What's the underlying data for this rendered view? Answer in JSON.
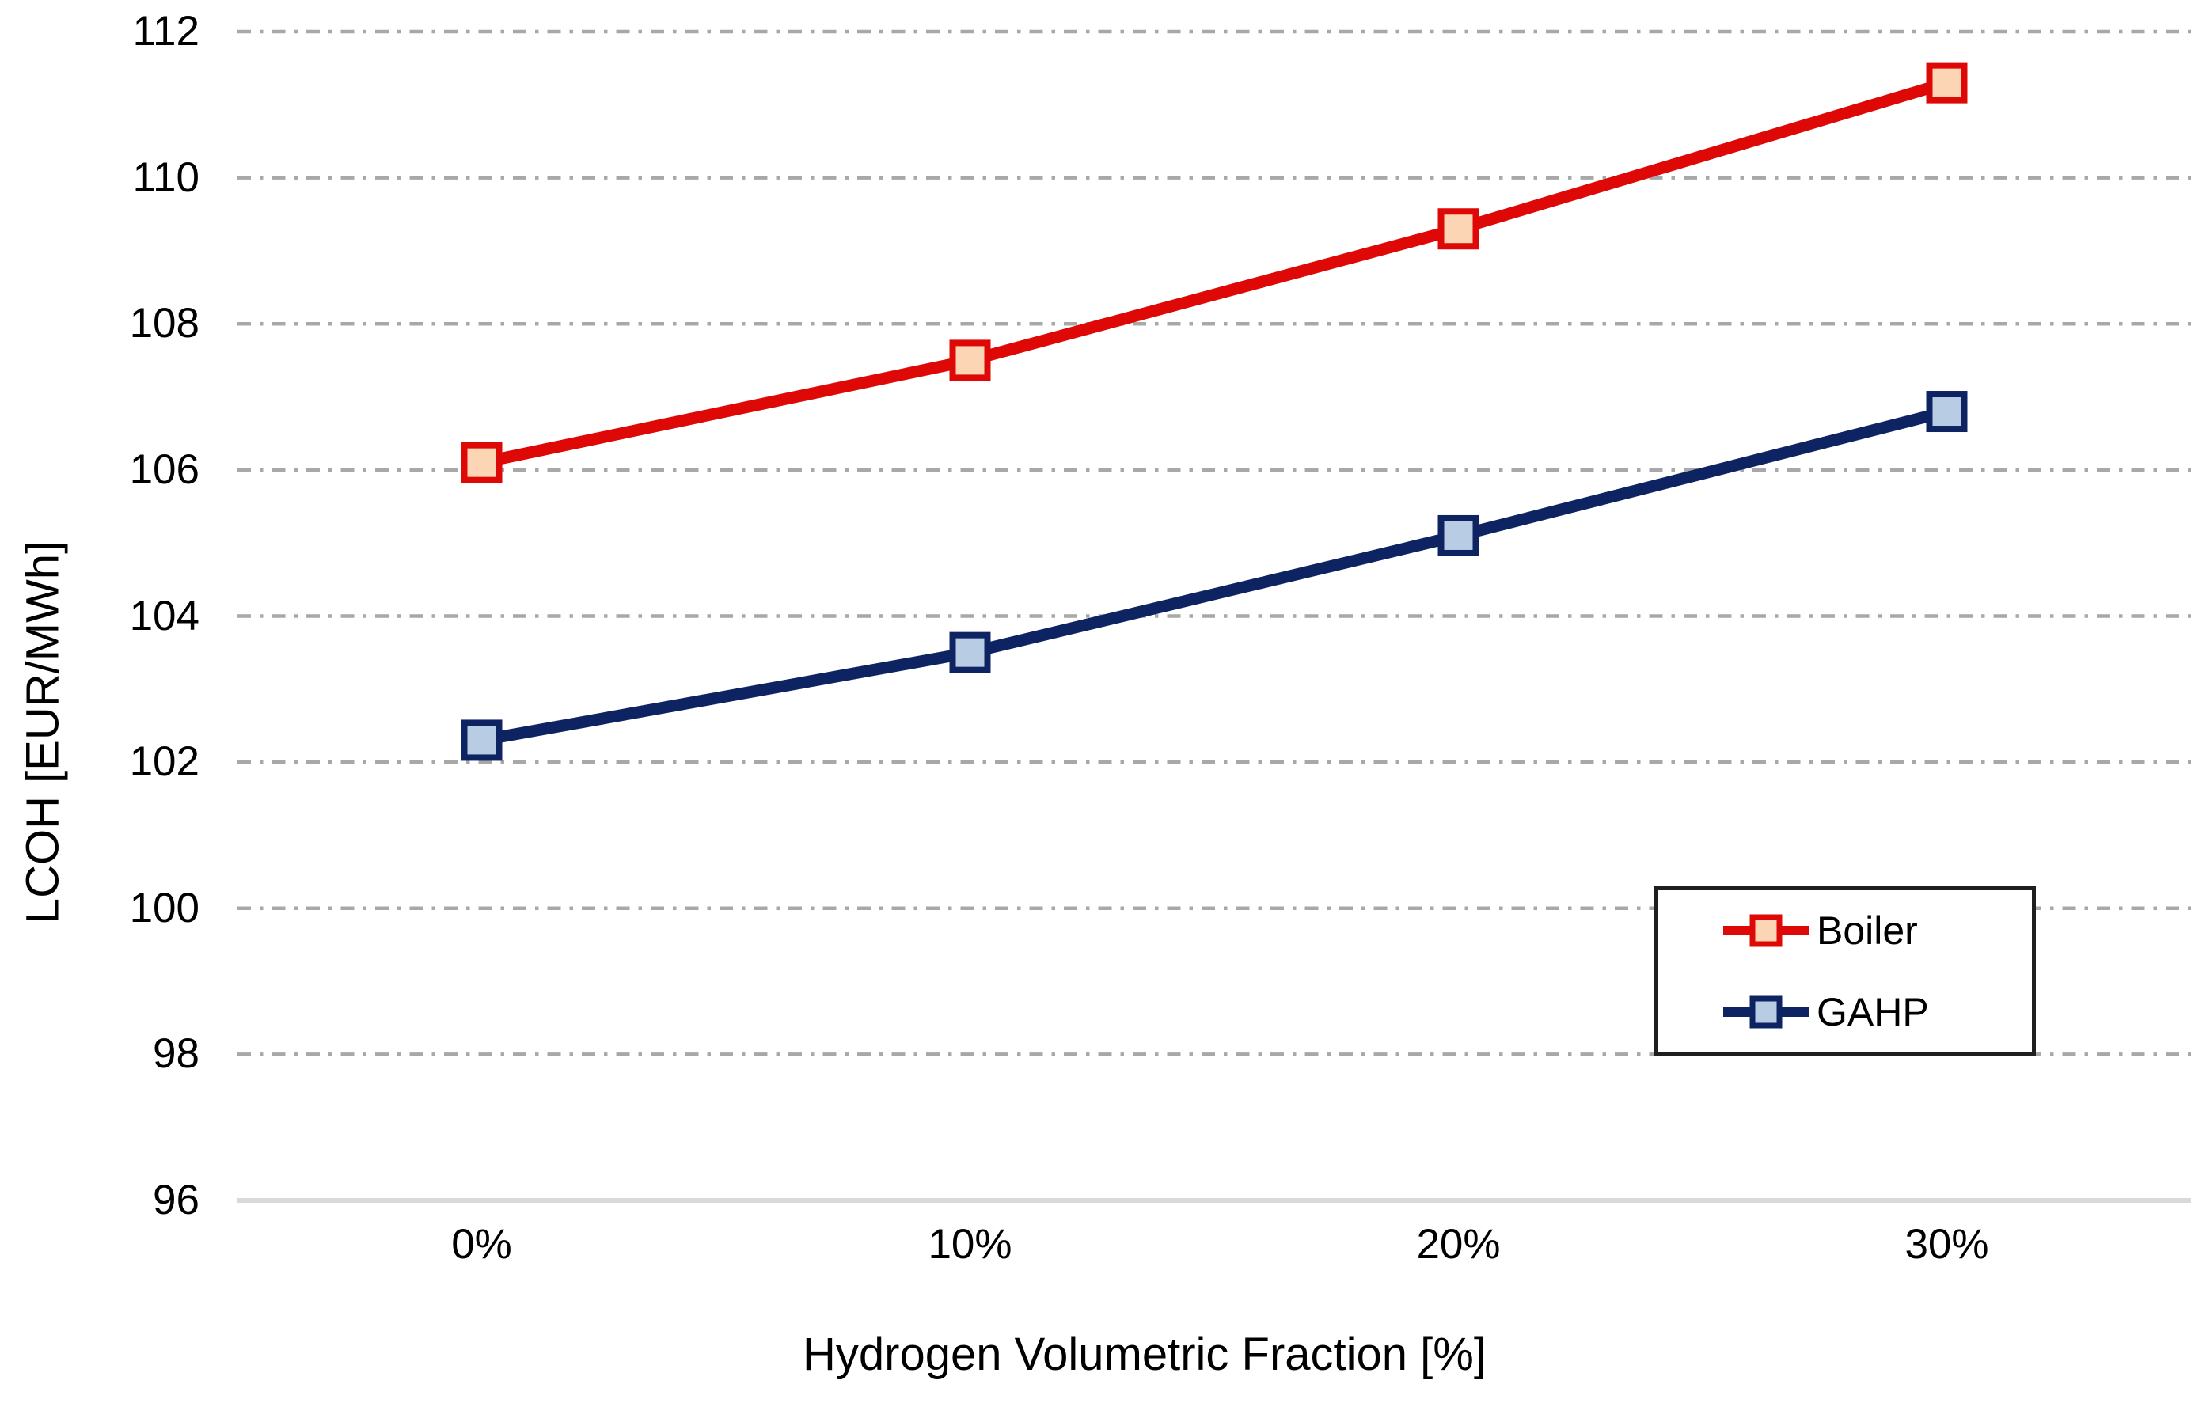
{
  "chart_data": {
    "type": "line",
    "title": "",
    "xlabel": "Hydrogen Volumetric Fraction [%]",
    "ylabel": "LCOH [EUR/MWh]",
    "categories": [
      "0%",
      "10%",
      "20%",
      "30%"
    ],
    "series": [
      {
        "name": "Boiler",
        "values": [
          106.1,
          107.5,
          109.3,
          111.3
        ],
        "line_color": "#DE0806",
        "marker_fill": "#FCD5B4",
        "marker_shape": "square"
      },
      {
        "name": "GAHP",
        "values": [
          102.3,
          103.5,
          105.1,
          106.8
        ],
        "line_color": "#0E2462",
        "marker_fill": "#B8CCE4",
        "marker_shape": "square"
      }
    ],
    "ylim": [
      96,
      112
    ],
    "yticks": [
      96,
      98,
      100,
      102,
      104,
      106,
      108,
      110,
      112
    ],
    "grid": "horizontal dash-dot gridlines",
    "legend_position": "inside lower-right",
    "colors": {
      "gridline": "#A8A8A8",
      "axis_line": "#D9D9D9",
      "text": "#000000",
      "legend_border": "#1F1F1F",
      "background": "#FFFFFF"
    }
  }
}
